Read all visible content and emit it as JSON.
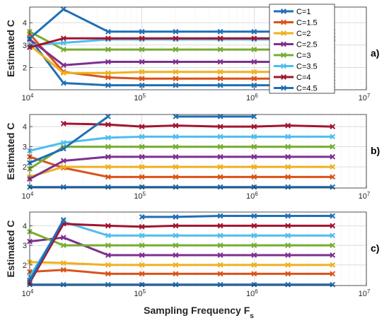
{
  "figure": {
    "xlabel_main": "Sampling Frequency F",
    "xlabel_sub": "s",
    "panel_labels": [
      "a)",
      "b)",
      "c)"
    ]
  },
  "legend": {
    "entries": [
      "C=1",
      "C=1.5",
      "C=2",
      "C=2.5",
      "C=3",
      "C=3.5",
      "C=4",
      "C=4.5"
    ],
    "colors": [
      "#1f6fb5",
      "#d95319",
      "#edb120",
      "#7e2f8e",
      "#77ac30",
      "#4dbeee",
      "#a2142f",
      "#1f6fb5"
    ],
    "placement": "top-right, inside panel a"
  },
  "chart_data": [
    {
      "type": "line",
      "panel": "a)",
      "ylabel": "Estimated C",
      "xscale": "log",
      "xlim": [
        10000,
        10000000
      ],
      "ylim": [
        1,
        4.7
      ],
      "yticks": [
        2,
        3,
        4
      ],
      "xticks": [
        10000,
        100000,
        1000000,
        10000000
      ],
      "xticklabels": [
        [
          "10",
          "4"
        ],
        [
          "10",
          "5"
        ],
        [
          "10",
          "6"
        ],
        [
          "10",
          "7"
        ]
      ],
      "grid": true,
      "x": [
        10000,
        20000,
        50000,
        100000,
        200000,
        500000,
        1000000,
        2000000,
        5000000
      ],
      "series": [
        {
          "name": "C=1",
          "values": [
            3.3,
            1.3,
            1.2,
            1.2,
            1.2,
            1.2,
            1.2,
            1.2,
            1.2
          ]
        },
        {
          "name": "C=1.5",
          "values": [
            3.5,
            1.8,
            1.55,
            1.5,
            1.5,
            1.5,
            1.5,
            1.5,
            1.5
          ]
        },
        {
          "name": "C=2",
          "values": [
            3.0,
            1.75,
            1.75,
            1.8,
            1.8,
            1.8,
            1.8,
            1.8,
            1.8
          ]
        },
        {
          "name": "C=2.5",
          "values": [
            3.25,
            2.1,
            2.25,
            2.25,
            2.25,
            2.25,
            2.25,
            2.25,
            2.25
          ]
        },
        {
          "name": "C=3",
          "values": [
            3.6,
            2.8,
            2.8,
            2.8,
            2.8,
            2.8,
            2.8,
            2.8,
            2.8
          ]
        },
        {
          "name": "C=3.5",
          "values": [
            3.0,
            3.1,
            3.25,
            3.25,
            3.25,
            3.25,
            3.25,
            3.25,
            3.25
          ]
        },
        {
          "name": "C=4",
          "values": [
            2.9,
            3.3,
            3.3,
            3.3,
            3.3,
            3.3,
            3.3,
            3.3,
            3.3
          ]
        },
        {
          "name": "C=4.5",
          "values": [
            3.3,
            4.6,
            3.6,
            3.6,
            3.6,
            3.6,
            3.6,
            3.6,
            3.6
          ]
        }
      ]
    },
    {
      "type": "line",
      "panel": "b)",
      "ylabel": "Estimated C",
      "xscale": "log",
      "xlim": [
        10000,
        10000000
      ],
      "ylim": [
        0.95,
        4.6
      ],
      "yticks": [
        2,
        3,
        4
      ],
      "xticks": [
        10000,
        100000,
        1000000,
        10000000
      ],
      "xticklabels": [
        [
          "10",
          "4"
        ],
        [
          "10",
          "5"
        ],
        [
          "10",
          "6"
        ],
        [
          "10",
          "7"
        ]
      ],
      "grid": true,
      "x": [
        10000,
        20000,
        50000,
        100000,
        200000,
        500000,
        1000000,
        2000000,
        5000000
      ],
      "series": [
        {
          "name": "C=1",
          "values": [
            1.0,
            1.0,
            1.0,
            1.0,
            1.0,
            1.0,
            1.0,
            1.0,
            1.0
          ]
        },
        {
          "name": "C=1.5",
          "values": [
            2.5,
            1.95,
            1.5,
            1.5,
            1.5,
            1.5,
            1.5,
            1.5,
            1.5
          ]
        },
        {
          "name": "C=2",
          "values": [
            1.5,
            2.0,
            2.0,
            2.0,
            2.0,
            2.0,
            2.0,
            2.0,
            2.0
          ]
        },
        {
          "name": "C=2.5",
          "values": [
            1.4,
            2.3,
            2.5,
            2.5,
            2.5,
            2.5,
            2.5,
            2.5,
            2.5
          ]
        },
        {
          "name": "C=3",
          "values": [
            1.9,
            3.0,
            3.0,
            3.0,
            3.0,
            3.0,
            3.0,
            3.0,
            3.0
          ]
        },
        {
          "name": "C=3.5",
          "values": [
            2.8,
            3.2,
            3.45,
            3.5,
            3.5,
            3.5,
            3.5,
            3.5,
            3.5
          ]
        },
        {
          "name": "C=4",
          "values": [
            null,
            4.15,
            4.1,
            4.0,
            4.05,
            4.0,
            4.0,
            4.05,
            4.0
          ]
        },
        {
          "name": "C=4.5",
          "values": [
            2.2,
            2.9,
            4.5,
            null,
            4.5,
            4.5,
            4.5,
            null,
            null
          ]
        }
      ]
    },
    {
      "type": "line",
      "panel": "c)",
      "ylabel": "Estimated C",
      "xscale": "log",
      "xlim": [
        10000,
        10000000
      ],
      "ylim": [
        0.95,
        4.7
      ],
      "yticks": [
        2,
        3,
        4
      ],
      "xticks": [
        10000,
        100000,
        1000000,
        10000000
      ],
      "xticklabels": [
        [
          "10",
          "4"
        ],
        [
          "10",
          "5"
        ],
        [
          "10",
          "6"
        ],
        [
          "10",
          "7"
        ]
      ],
      "grid": true,
      "x": [
        10000,
        20000,
        50000,
        100000,
        200000,
        500000,
        1000000,
        2000000,
        5000000
      ],
      "series": [
        {
          "name": "C=1",
          "values": [
            1.0,
            1.0,
            1.0,
            1.0,
            1.0,
            1.0,
            1.0,
            1.0,
            1.0
          ]
        },
        {
          "name": "C=1.5",
          "values": [
            1.65,
            1.75,
            1.55,
            1.55,
            1.55,
            1.55,
            1.55,
            1.55,
            1.55
          ]
        },
        {
          "name": "C=2",
          "values": [
            2.15,
            2.1,
            2.0,
            2.0,
            2.0,
            2.0,
            2.0,
            2.0,
            2.0
          ]
        },
        {
          "name": "C=2.5",
          "values": [
            3.2,
            3.4,
            2.5,
            2.5,
            2.5,
            2.5,
            2.5,
            2.5,
            2.5
          ]
        },
        {
          "name": "C=3",
          "values": [
            3.7,
            3.0,
            3.0,
            3.0,
            3.0,
            3.0,
            3.0,
            3.0,
            3.0
          ]
        },
        {
          "name": "C=3.5",
          "values": [
            1.4,
            4.2,
            3.5,
            3.5,
            3.5,
            3.5,
            3.5,
            3.5,
            3.5
          ]
        },
        {
          "name": "C=4",
          "values": [
            1.1,
            4.1,
            4.0,
            3.95,
            4.0,
            4.0,
            4.0,
            4.0,
            4.0
          ]
        },
        {
          "name": "C=4.5",
          "values": [
            1.2,
            4.3,
            null,
            4.45,
            4.45,
            4.5,
            4.5,
            4.5,
            4.5
          ]
        }
      ]
    }
  ]
}
